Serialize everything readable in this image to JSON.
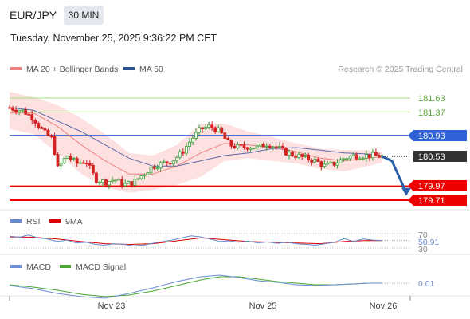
{
  "header": {
    "symbol": "EUR/JPY",
    "timeframe": "30 MIN",
    "datetime": "Tuesday, November 25, 2025 9:36:22 PM CET"
  },
  "legend": {
    "ma20_bb": "MA 20 + Bollinger Bands",
    "ma50": "MA 50",
    "credit": "Research © 2025 Trading Central"
  },
  "colors": {
    "up": "#3a9f3a",
    "down": "#d22222",
    "ma20": "#f08080",
    "ma50": "#5b6aa8",
    "band": "#fde0e0",
    "support": "#ee0000",
    "resistance": "#2e62d6",
    "target": "#a6d88a",
    "arrow": "#2a5ea8",
    "rsi": "#6688cc",
    "rsi_ma": "#dd0000",
    "macd": "#6c8cd5",
    "macd_signal": "#4aa832",
    "last_price_bg": "#333333"
  },
  "chart_data": [
    {
      "type": "candlestick",
      "title": "EUR/JPY",
      "timeframe": "30 MIN",
      "x_ticks": [
        "Nov 23",
        "Nov 25",
        "Nov 26"
      ],
      "ylim": [
        179.6,
        182.0
      ],
      "grid": false,
      "legend_position": "top-left",
      "last_price": 180.53,
      "levels": [
        {
          "kind": "target",
          "label": "181.63",
          "value": 181.63
        },
        {
          "kind": "target",
          "label": "181.37",
          "value": 181.37
        },
        {
          "kind": "resistance",
          "label": "180.93",
          "value": 180.93
        },
        {
          "kind": "last",
          "label": "180.53",
          "value": 180.53
        },
        {
          "kind": "support",
          "label": "179.97",
          "value": 179.97
        },
        {
          "kind": "support",
          "label": "179.71",
          "value": 179.71
        }
      ],
      "series": [
        {
          "name": "MA 20 + Bollinger Bands"
        },
        {
          "name": "MA 50"
        }
      ],
      "price_path": [
        [
          0,
          181.45
        ],
        [
          3,
          181.38
        ],
        [
          5,
          181.25
        ],
        [
          7,
          181.0
        ],
        [
          9,
          180.85
        ],
        [
          10,
          180.3
        ],
        [
          12,
          180.55
        ],
        [
          14,
          180.4
        ],
        [
          16,
          180.45
        ],
        [
          18,
          180.1
        ],
        [
          20,
          180.05
        ],
        [
          22,
          180.1
        ],
        [
          24,
          180.0
        ],
        [
          26,
          180.05
        ],
        [
          28,
          180.2
        ],
        [
          30,
          180.35
        ],
        [
          32,
          180.4
        ],
        [
          34,
          180.45
        ],
        [
          36,
          180.6
        ],
        [
          38,
          180.85
        ],
        [
          40,
          181.05
        ],
        [
          42,
          181.1
        ],
        [
          44,
          181.0
        ],
        [
          46,
          180.75
        ],
        [
          48,
          180.7
        ],
        [
          50,
          180.72
        ],
        [
          52,
          180.7
        ],
        [
          54,
          180.78
        ],
        [
          56,
          180.7
        ],
        [
          58,
          180.6
        ],
        [
          60,
          180.55
        ],
        [
          62,
          180.5
        ],
        [
          64,
          180.45
        ],
        [
          66,
          180.35
        ],
        [
          68,
          180.4
        ],
        [
          70,
          180.5
        ],
        [
          72,
          180.55
        ],
        [
          74,
          180.55
        ],
        [
          76,
          180.55
        ],
        [
          78,
          180.53
        ]
      ],
      "ma20": [
        [
          0,
          181.35
        ],
        [
          5,
          181.35
        ],
        [
          10,
          181.1
        ],
        [
          15,
          180.75
        ],
        [
          20,
          180.45
        ],
        [
          25,
          180.2
        ],
        [
          30,
          180.2
        ],
        [
          35,
          180.35
        ],
        [
          40,
          180.6
        ],
        [
          45,
          180.78
        ],
        [
          50,
          180.75
        ],
        [
          55,
          180.7
        ],
        [
          60,
          180.62
        ],
        [
          65,
          180.5
        ],
        [
          70,
          180.45
        ],
        [
          75,
          180.5
        ],
        [
          78,
          180.53
        ]
      ],
      "ma50": [
        [
          0,
          181.45
        ],
        [
          5,
          181.4
        ],
        [
          10,
          181.2
        ],
        [
          15,
          181.0
        ],
        [
          20,
          180.75
        ],
        [
          25,
          180.5
        ],
        [
          30,
          180.35
        ],
        [
          35,
          180.35
        ],
        [
          40,
          180.45
        ],
        [
          45,
          180.55
        ],
        [
          50,
          180.6
        ],
        [
          55,
          180.68
        ],
        [
          60,
          180.7
        ],
        [
          65,
          180.65
        ],
        [
          70,
          180.6
        ],
        [
          75,
          180.58
        ],
        [
          78,
          180.55
        ]
      ],
      "bb_upper": [
        [
          0,
          181.75
        ],
        [
          5,
          181.65
        ],
        [
          10,
          181.5
        ],
        [
          15,
          181.25
        ],
        [
          20,
          180.95
        ],
        [
          25,
          180.6
        ],
        [
          30,
          180.55
        ],
        [
          35,
          180.75
        ],
        [
          40,
          181.15
        ],
        [
          45,
          181.15
        ],
        [
          50,
          181.0
        ],
        [
          55,
          180.9
        ],
        [
          60,
          180.78
        ],
        [
          65,
          180.68
        ],
        [
          70,
          180.65
        ],
        [
          75,
          180.65
        ],
        [
          78,
          180.62
        ]
      ],
      "bb_lower": [
        [
          0,
          181.05
        ],
        [
          5,
          180.95
        ],
        [
          10,
          180.6
        ],
        [
          15,
          180.2
        ],
        [
          20,
          179.95
        ],
        [
          25,
          179.85
        ],
        [
          30,
          179.9
        ],
        [
          35,
          180.0
        ],
        [
          40,
          180.15
        ],
        [
          45,
          180.45
        ],
        [
          50,
          180.5
        ],
        [
          55,
          180.45
        ],
        [
          60,
          180.4
        ],
        [
          65,
          180.3
        ],
        [
          70,
          180.25
        ],
        [
          75,
          180.35
        ],
        [
          78,
          180.42
        ]
      ],
      "forecast": [
        [
          78,
          180.53
        ],
        [
          80,
          180.45
        ],
        [
          83,
          179.85
        ]
      ]
    },
    {
      "type": "line",
      "title": "RSI",
      "legend": [
        "RSI",
        "9MA"
      ],
      "ylim": [
        25,
        75
      ],
      "y_ticks": [
        70,
        50,
        30
      ],
      "last_value": 50.91,
      "series": [
        {
          "name": "RSI",
          "values": [
            [
              0,
              63
            ],
            [
              2,
              60
            ],
            [
              4,
              66
            ],
            [
              6,
              58
            ],
            [
              8,
              55
            ],
            [
              10,
              48
            ],
            [
              12,
              52
            ],
            [
              14,
              44
            ],
            [
              16,
              46
            ],
            [
              18,
              40
            ],
            [
              20,
              38
            ],
            [
              22,
              42
            ],
            [
              24,
              40
            ],
            [
              26,
              36
            ],
            [
              28,
              38
            ],
            [
              30,
              43
            ],
            [
              32,
              48
            ],
            [
              34,
              52
            ],
            [
              36,
              58
            ],
            [
              38,
              64
            ],
            [
              40,
              61
            ],
            [
              42,
              55
            ],
            [
              44,
              48
            ],
            [
              46,
              50
            ],
            [
              48,
              46
            ],
            [
              50,
              49
            ],
            [
              52,
              44
            ],
            [
              54,
              47
            ],
            [
              56,
              43
            ],
            [
              58,
              46
            ],
            [
              60,
              42
            ],
            [
              62,
              40
            ],
            [
              64,
              38
            ],
            [
              66,
              42
            ],
            [
              68,
              46
            ],
            [
              70,
              56
            ],
            [
              72,
              48
            ],
            [
              74,
              55
            ],
            [
              76,
              52
            ],
            [
              78,
              50.91
            ]
          ]
        },
        {
          "name": "9MA",
          "values": [
            [
              0,
              61
            ],
            [
              5,
              60
            ],
            [
              10,
              55
            ],
            [
              15,
              48
            ],
            [
              20,
              42
            ],
            [
              25,
              40
            ],
            [
              30,
              42
            ],
            [
              35,
              50
            ],
            [
              40,
              58
            ],
            [
              45,
              53
            ],
            [
              50,
              48
            ],
            [
              55,
              46
            ],
            [
              60,
              44
            ],
            [
              65,
              42
            ],
            [
              70,
              48
            ],
            [
              75,
              51
            ],
            [
              78,
              50.5
            ]
          ]
        }
      ]
    },
    {
      "type": "line",
      "title": "MACD",
      "legend": [
        "MACD",
        "MACD Signal"
      ],
      "ylim": [
        -0.25,
        0.2
      ],
      "last_value": 0.01,
      "series": [
        {
          "name": "MACD",
          "values": [
            [
              0,
              -0.02
            ],
            [
              5,
              -0.06
            ],
            [
              10,
              -0.12
            ],
            [
              15,
              -0.16
            ],
            [
              20,
              -0.18
            ],
            [
              25,
              -0.12
            ],
            [
              30,
              -0.05
            ],
            [
              35,
              0.03
            ],
            [
              40,
              0.09
            ],
            [
              44,
              0.11
            ],
            [
              48,
              0.08
            ],
            [
              52,
              0.04
            ],
            [
              56,
              0.02
            ],
            [
              60,
              -0.01
            ],
            [
              64,
              -0.02
            ],
            [
              68,
              -0.01
            ],
            [
              72,
              0.0
            ],
            [
              75,
              0.01
            ],
            [
              78,
              0.01
            ]
          ]
        },
        {
          "name": "MACD Signal",
          "values": [
            [
              0,
              -0.01
            ],
            [
              5,
              -0.04
            ],
            [
              10,
              -0.08
            ],
            [
              15,
              -0.13
            ],
            [
              20,
              -0.16
            ],
            [
              25,
              -0.14
            ],
            [
              30,
              -0.09
            ],
            [
              35,
              -0.02
            ],
            [
              40,
              0.05
            ],
            [
              44,
              0.09
            ],
            [
              48,
              0.09
            ],
            [
              52,
              0.06
            ],
            [
              56,
              0.03
            ],
            [
              60,
              0.01
            ],
            [
              64,
              -0.01
            ],
            [
              68,
              -0.01
            ],
            [
              72,
              0.0
            ],
            [
              75,
              0.01
            ],
            [
              78,
              0.01
            ]
          ]
        }
      ]
    }
  ],
  "candles_seed": 7,
  "price_labels": {
    "t1": "181.63",
    "t2": "181.37",
    "res": "180.93",
    "last": "180.53",
    "s1": "179.97",
    "s2": "179.71"
  },
  "rsi_panel": {
    "rsi_label": "RSI",
    "ma_label": "9MA",
    "tick70": "70",
    "tick50": "50",
    "tick30": "30",
    "last": "50.91"
  },
  "macd_panel": {
    "macd_label": "MACD",
    "signal_label": "MACD Signal",
    "last": "0.01"
  },
  "x_axis": {
    "t1": "Nov 23",
    "t2": "Nov 25",
    "t3": "Nov 26"
  }
}
